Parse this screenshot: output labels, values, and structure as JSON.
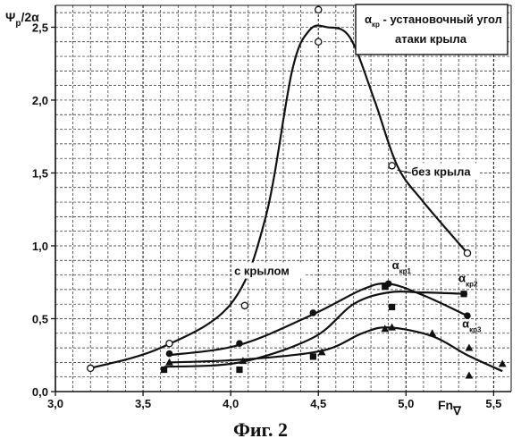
{
  "chart_data": {
    "type": "line",
    "xlabel": "Fn",
    "xlabel_sub": "∇",
    "ylabel": "Ψ",
    "ylabel_sub": "р",
    "ylabel_tail": "/2α",
    "xlim": [
      3.0,
      5.6
    ],
    "ylim": [
      0.0,
      2.65
    ],
    "x_ticks": [
      3.0,
      3.5,
      4.0,
      4.5,
      5.0,
      5.5
    ],
    "x_tick_labels": [
      "3,0",
      "3,5",
      "4,0",
      "4,5",
      "5,0",
      "5,5"
    ],
    "y_ticks": [
      0.0,
      0.5,
      1.0,
      1.5,
      2.0,
      2.5
    ],
    "y_tick_labels": [
      "0,0",
      "0,5",
      "1,0",
      "1,5",
      "2,0",
      "2,5"
    ],
    "grid": true,
    "legend_box": {
      "symbol": "α",
      "sub": "кр",
      "line1": "- установочный угол",
      "line2": "атаки крыла"
    },
    "series": [
      {
        "name": "без крыла",
        "marker": "open-circle",
        "points": [
          [
            3.2,
            0.16
          ],
          [
            3.65,
            0.33
          ],
          [
            4.08,
            0.59
          ],
          [
            4.5,
            2.4
          ],
          [
            4.5,
            2.62
          ],
          [
            4.92,
            1.55
          ],
          [
            5.35,
            0.95
          ]
        ],
        "curve": [
          [
            3.2,
            0.16
          ],
          [
            3.6,
            0.3
          ],
          [
            4.0,
            0.6
          ],
          [
            4.2,
            1.2
          ],
          [
            4.35,
            2.2
          ],
          [
            4.45,
            2.48
          ],
          [
            4.55,
            2.5
          ],
          [
            4.68,
            2.43
          ],
          [
            4.82,
            2.0
          ],
          [
            4.95,
            1.55
          ],
          [
            5.1,
            1.3
          ],
          [
            5.35,
            0.95
          ]
        ]
      },
      {
        "name": "с крылом",
        "label": "α",
        "label_sub": "кр1",
        "marker": "filled-circle",
        "points": [
          [
            3.65,
            0.26
          ],
          [
            4.05,
            0.33
          ],
          [
            4.47,
            0.54
          ],
          [
            4.9,
            0.74
          ],
          [
            5.35,
            0.52
          ]
        ],
        "curve": [
          [
            3.65,
            0.25
          ],
          [
            4.05,
            0.32
          ],
          [
            4.47,
            0.53
          ],
          [
            4.75,
            0.7
          ],
          [
            4.9,
            0.74
          ],
          [
            5.1,
            0.66
          ],
          [
            5.35,
            0.52
          ]
        ]
      },
      {
        "label": "α",
        "label_sub": "кр2",
        "marker": "filled-square",
        "points": [
          [
            3.62,
            0.15
          ],
          [
            4.05,
            0.15
          ],
          [
            4.47,
            0.24
          ],
          [
            4.88,
            0.72
          ],
          [
            4.92,
            0.58
          ],
          [
            5.33,
            0.67
          ]
        ],
        "curve": [
          [
            3.62,
            0.17
          ],
          [
            4.05,
            0.2
          ],
          [
            4.47,
            0.37
          ],
          [
            4.7,
            0.6
          ],
          [
            4.9,
            0.68
          ],
          [
            5.1,
            0.68
          ],
          [
            5.35,
            0.67
          ]
        ]
      },
      {
        "label": "α",
        "label_sub": "кр3",
        "marker": "filled-triangle",
        "points": [
          [
            3.65,
            0.2
          ],
          [
            4.07,
            0.21
          ],
          [
            4.52,
            0.27
          ],
          [
            4.88,
            0.43
          ],
          [
            4.92,
            0.44
          ],
          [
            5.15,
            0.4
          ],
          [
            5.36,
            0.3
          ],
          [
            5.36,
            0.11
          ],
          [
            5.55,
            0.19
          ]
        ],
        "curve": [
          [
            3.65,
            0.2
          ],
          [
            4.07,
            0.22
          ],
          [
            4.52,
            0.28
          ],
          [
            4.75,
            0.4
          ],
          [
            4.9,
            0.44
          ],
          [
            5.15,
            0.38
          ],
          [
            5.35,
            0.25
          ],
          [
            5.55,
            0.14
          ]
        ]
      }
    ],
    "annotations": [
      {
        "text": "без крыла",
        "x": 5.03,
        "y": 1.48
      },
      {
        "text": "с крылом",
        "x": 4.02,
        "y": 0.8
      }
    ]
  },
  "caption": "Фиг. 2"
}
